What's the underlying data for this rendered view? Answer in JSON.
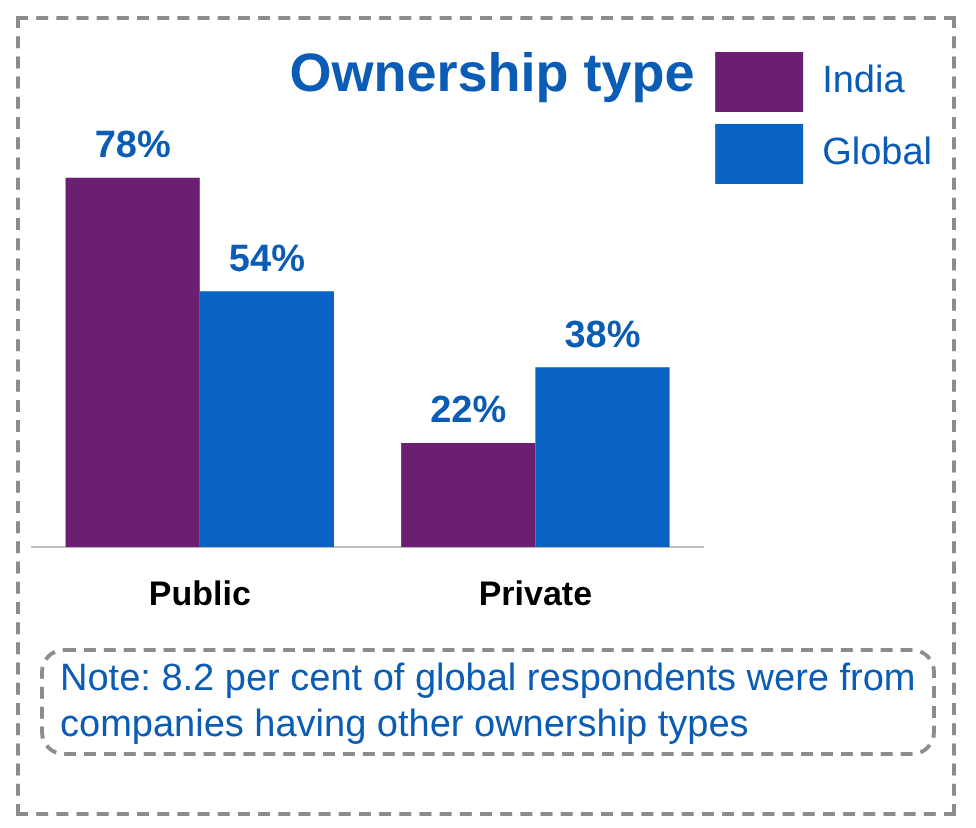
{
  "chart_data": {
    "type": "bar",
    "title": "Ownership type",
    "categories": [
      "Public",
      "Private"
    ],
    "series": [
      {
        "name": "India",
        "color": "#6b1f73",
        "values": [
          78,
          22
        ],
        "value_labels": [
          "78%",
          "22%"
        ]
      },
      {
        "name": "Global",
        "color": "#0a62c2",
        "values": [
          54,
          38
        ],
        "value_labels": [
          "54%",
          "38%"
        ]
      }
    ],
    "legend": "top right",
    "grid": false,
    "annotations": [
      "Note: 8.2 per cent of global respondents were from companies having other ownership types"
    ]
  }
}
